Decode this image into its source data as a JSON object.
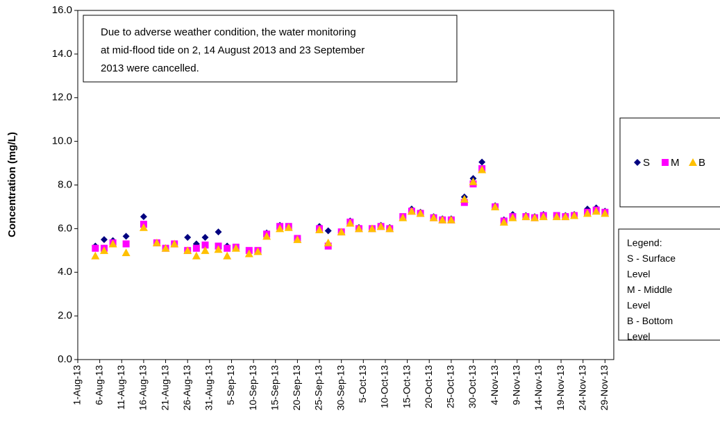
{
  "chart_data": {
    "type": "scatter",
    "ylabel": "Concentration (mg/L)",
    "annotation": [
      "Due  to adverse weather condition, the  water monitoring",
      "at mid-flood tide on  2, 14 August 2013 and 23 September",
      "2013 were cancelled."
    ],
    "legend_note": [
      "Legend:",
      "S - Surface",
      "Level",
      "M - Middle",
      "Level",
      "B - Bottom",
      "Level"
    ],
    "xlim": [
      "2013-08-01",
      "2013-12-01"
    ],
    "xticks": [
      {
        "value": "2013-08-01",
        "label": "1-Aug-13"
      },
      {
        "value": "2013-08-06",
        "label": "6-Aug-13"
      },
      {
        "value": "2013-08-11",
        "label": "11-Aug-13"
      },
      {
        "value": "2013-08-16",
        "label": "16-Aug-13"
      },
      {
        "value": "2013-08-21",
        "label": "21-Aug-13"
      },
      {
        "value": "2013-08-26",
        "label": "26-Aug-13"
      },
      {
        "value": "2013-08-31",
        "label": "31-Aug-13"
      },
      {
        "value": "2013-09-05",
        "label": "5-Sep-13"
      },
      {
        "value": "2013-09-10",
        "label": "10-Sep-13"
      },
      {
        "value": "2013-09-15",
        "label": "15-Sep-13"
      },
      {
        "value": "2013-09-20",
        "label": "20-Sep-13"
      },
      {
        "value": "2013-09-25",
        "label": "25-Sep-13"
      },
      {
        "value": "2013-09-30",
        "label": "30-Sep-13"
      },
      {
        "value": "2013-10-05",
        "label": "5-Oct-13"
      },
      {
        "value": "2013-10-10",
        "label": "10-Oct-13"
      },
      {
        "value": "2013-10-15",
        "label": "15-Oct-13"
      },
      {
        "value": "2013-10-20",
        "label": "20-Oct-13"
      },
      {
        "value": "2013-10-25",
        "label": "25-Oct-13"
      },
      {
        "value": "2013-10-30",
        "label": "30-Oct-13"
      },
      {
        "value": "2013-11-04",
        "label": "4-Nov-13"
      },
      {
        "value": "2013-11-09",
        "label": "9-Nov-13"
      },
      {
        "value": "2013-11-14",
        "label": "14-Nov-13"
      },
      {
        "value": "2013-11-19",
        "label": "19-Nov-13"
      },
      {
        "value": "2013-11-24",
        "label": "24-Nov-13"
      },
      {
        "value": "2013-11-29",
        "label": "29-Nov-13"
      }
    ],
    "ylim": [
      0,
      16
    ],
    "yticks": [
      {
        "value": 0,
        "label": "0.0"
      },
      {
        "value": 2,
        "label": "2.0"
      },
      {
        "value": 4,
        "label": "4.0"
      },
      {
        "value": 6,
        "label": "6.0"
      },
      {
        "value": 8,
        "label": "8.0"
      },
      {
        "value": 10,
        "label": "10.0"
      },
      {
        "value": 12,
        "label": "12.0"
      },
      {
        "value": 14,
        "label": "14.0"
      },
      {
        "value": 16,
        "label": "16.0"
      }
    ],
    "grid": false,
    "x": [
      "2013-08-05",
      "2013-08-07",
      "2013-08-09",
      "2013-08-12",
      "2013-08-16",
      "2013-08-19",
      "2013-08-21",
      "2013-08-23",
      "2013-08-26",
      "2013-08-28",
      "2013-08-30",
      "2013-09-02",
      "2013-09-04",
      "2013-09-06",
      "2013-09-09",
      "2013-09-11",
      "2013-09-13",
      "2013-09-16",
      "2013-09-18",
      "2013-09-20",
      "2013-09-25",
      "2013-09-27",
      "2013-09-30",
      "2013-10-02",
      "2013-10-04",
      "2013-10-07",
      "2013-10-09",
      "2013-10-11",
      "2013-10-14",
      "2013-10-16",
      "2013-10-18",
      "2013-10-21",
      "2013-10-23",
      "2013-10-25",
      "2013-10-28",
      "2013-10-30",
      "2013-11-01",
      "2013-11-04",
      "2013-11-06",
      "2013-11-08",
      "2013-11-11",
      "2013-11-13",
      "2013-11-15",
      "2013-11-18",
      "2013-11-20",
      "2013-11-22",
      "2013-11-25",
      "2013-11-27",
      "2013-11-29"
    ],
    "series": [
      {
        "name": "S",
        "color": "#000080",
        "marker": "diamond",
        "values": [
          5.2,
          5.5,
          5.45,
          5.65,
          6.55,
          5.35,
          5.1,
          5.3,
          5.6,
          5.3,
          5.6,
          5.85,
          5.2,
          5.15,
          4.95,
          5.0,
          5.8,
          6.15,
          6.1,
          5.55,
          6.1,
          5.9,
          5.85,
          6.35,
          6.05,
          6.0,
          6.15,
          6.05,
          6.55,
          6.9,
          6.75,
          6.55,
          6.45,
          6.45,
          7.45,
          8.3,
          9.05,
          7.05,
          6.4,
          6.65,
          6.6,
          6.55,
          6.65,
          6.6,
          6.6,
          6.65,
          6.9,
          6.95,
          6.8
        ]
      },
      {
        "name": "M",
        "color": "#ff00ff",
        "marker": "square",
        "values": [
          5.1,
          5.1,
          5.35,
          5.3,
          6.2,
          5.35,
          5.1,
          5.3,
          5.0,
          5.1,
          5.25,
          5.2,
          5.1,
          5.15,
          5.0,
          5.0,
          5.75,
          6.1,
          6.1,
          5.55,
          6.0,
          5.2,
          5.85,
          6.3,
          6.0,
          6.0,
          6.1,
          6.0,
          6.55,
          6.8,
          6.7,
          6.5,
          6.4,
          6.4,
          7.2,
          8.05,
          8.75,
          7.0,
          6.35,
          6.55,
          6.55,
          6.5,
          6.6,
          6.6,
          6.55,
          6.6,
          6.75,
          6.85,
          6.75
        ]
      },
      {
        "name": "B",
        "color": "#ffc000",
        "marker": "triangle",
        "values": [
          4.75,
          5.0,
          5.3,
          4.9,
          6.05,
          5.35,
          5.1,
          5.3,
          5.0,
          4.75,
          5.0,
          5.05,
          4.75,
          5.1,
          4.85,
          4.95,
          5.65,
          6.0,
          6.05,
          5.5,
          5.95,
          5.35,
          5.85,
          6.25,
          6.0,
          6.0,
          6.1,
          6.0,
          6.5,
          6.8,
          6.7,
          6.5,
          6.4,
          6.4,
          7.35,
          8.15,
          8.7,
          7.0,
          6.3,
          6.5,
          6.55,
          6.5,
          6.55,
          6.55,
          6.55,
          6.6,
          6.7,
          6.8,
          6.7
        ]
      }
    ]
  }
}
